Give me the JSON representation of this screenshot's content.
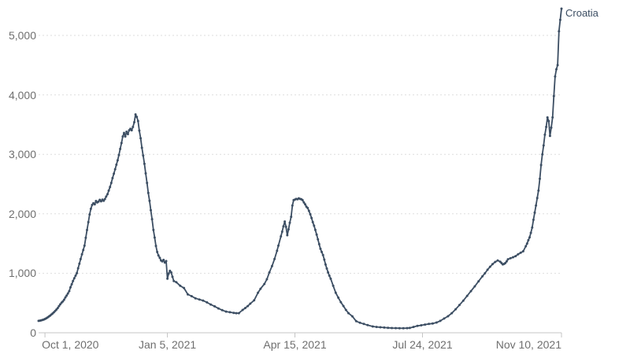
{
  "chart": {
    "entity_label": "Croatia",
    "line_color": "#3c4e63",
    "axis_label_color": "#6f6f6f",
    "grid_color": "#dedede",
    "axis_line_color": "#c4c4c4",
    "background": "#ffffff"
  },
  "chart_data": {
    "type": "line",
    "title": "",
    "xlabel": "",
    "ylabel": "",
    "grid": "horizontal-dashed",
    "legend_position": "line-end",
    "x_domain_days": [
      -5,
      405
    ],
    "x_epoch": "days relative to Oct 1, 2020",
    "ylim": [
      0,
      5500
    ],
    "y_ticks": [
      {
        "value": 0,
        "label": "0"
      },
      {
        "value": 1000,
        "label": "1,000"
      },
      {
        "value": 2000,
        "label": "2,000"
      },
      {
        "value": 3000,
        "label": "3,000"
      },
      {
        "value": 4000,
        "label": "4,000"
      },
      {
        "value": 5000,
        "label": "5,000"
      }
    ],
    "x_ticks": [
      {
        "day": 0,
        "label": "Oct 1, 2020"
      },
      {
        "day": 96,
        "label": "Jan 5, 2021"
      },
      {
        "day": 196,
        "label": "Apr 15, 2021"
      },
      {
        "day": 296,
        "label": "Jul 24, 2021"
      },
      {
        "day": 405,
        "label": "Nov 10, 2021"
      }
    ],
    "series": [
      {
        "name": "Croatia",
        "points": [
          [
            -5,
            200
          ],
          [
            -4,
            204
          ],
          [
            -3,
            209
          ],
          [
            -2,
            215
          ],
          [
            -1,
            222
          ],
          [
            0,
            231
          ],
          [
            1,
            243
          ],
          [
            2,
            257
          ],
          [
            3,
            272
          ],
          [
            4,
            288
          ],
          [
            5,
            305
          ],
          [
            6,
            324
          ],
          [
            7,
            344
          ],
          [
            8,
            366
          ],
          [
            9,
            390
          ],
          [
            10,
            416
          ],
          [
            11,
            449
          ],
          [
            12,
            478
          ],
          [
            13,
            505
          ],
          [
            14,
            528
          ],
          [
            15,
            556
          ],
          [
            16,
            594
          ],
          [
            17,
            625
          ],
          [
            18,
            660
          ],
          [
            19,
            700
          ],
          [
            20,
            765
          ],
          [
            21,
            815
          ],
          [
            22,
            871
          ],
          [
            23,
            915
          ],
          [
            24,
            960
          ],
          [
            25,
            1003
          ],
          [
            26,
            1085
          ],
          [
            27,
            1161
          ],
          [
            28,
            1240
          ],
          [
            29,
            1319
          ],
          [
            30,
            1390
          ],
          [
            31,
            1464
          ],
          [
            32,
            1596
          ],
          [
            33,
            1728
          ],
          [
            34,
            1860
          ],
          [
            35,
            1990
          ],
          [
            36,
            2084
          ],
          [
            37,
            2150
          ],
          [
            38,
            2177
          ],
          [
            39,
            2160
          ],
          [
            40,
            2216
          ],
          [
            41,
            2190
          ],
          [
            42,
            2205
          ],
          [
            43,
            2235
          ],
          [
            44,
            2210
          ],
          [
            45,
            2240
          ],
          [
            46,
            2218
          ],
          [
            47,
            2248
          ],
          [
            48,
            2290
          ],
          [
            49,
            2330
          ],
          [
            50,
            2390
          ],
          [
            51,
            2450
          ],
          [
            52,
            2520
          ],
          [
            53,
            2600
          ],
          [
            54,
            2675
          ],
          [
            55,
            2750
          ],
          [
            56,
            2825
          ],
          [
            57,
            2900
          ],
          [
            58,
            2990
          ],
          [
            59,
            3090
          ],
          [
            60,
            3190
          ],
          [
            61,
            3300
          ],
          [
            62,
            3360
          ],
          [
            63,
            3300
          ],
          [
            64,
            3380
          ],
          [
            65,
            3340
          ],
          [
            66,
            3405
          ],
          [
            67,
            3430
          ],
          [
            68,
            3405
          ],
          [
            69,
            3460
          ],
          [
            70,
            3540
          ],
          [
            71,
            3670
          ],
          [
            72,
            3630
          ],
          [
            73,
            3560
          ],
          [
            74,
            3400
          ],
          [
            75,
            3270
          ],
          [
            76,
            3110
          ],
          [
            77,
            2980
          ],
          [
            78,
            2840
          ],
          [
            79,
            2680
          ],
          [
            80,
            2520
          ],
          [
            81,
            2350
          ],
          [
            82,
            2220
          ],
          [
            83,
            2060
          ],
          [
            84,
            1910
          ],
          [
            85,
            1730
          ],
          [
            86,
            1600
          ],
          [
            87,
            1460
          ],
          [
            88,
            1360
          ],
          [
            89,
            1300
          ],
          [
            90,
            1260
          ],
          [
            91,
            1215
          ],
          [
            92,
            1200
          ],
          [
            93,
            1225
          ],
          [
            94,
            1180
          ],
          [
            95,
            1205
          ],
          [
            96,
            910
          ],
          [
            97,
            995
          ],
          [
            98,
            1042
          ],
          [
            99,
            1016
          ],
          [
            100,
            940
          ],
          [
            101,
            871
          ],
          [
            103,
            850
          ],
          [
            106,
            790
          ],
          [
            109,
            752
          ],
          [
            112,
            646
          ],
          [
            115,
            615
          ],
          [
            118,
            580
          ],
          [
            121,
            560
          ],
          [
            124,
            541
          ],
          [
            127,
            510
          ],
          [
            130,
            475
          ],
          [
            133,
            445
          ],
          [
            136,
            409
          ],
          [
            139,
            380
          ],
          [
            142,
            356
          ],
          [
            145,
            345
          ],
          [
            148,
            335
          ],
          [
            150,
            330
          ],
          [
            152,
            330
          ],
          [
            155,
            383
          ],
          [
            157,
            415
          ],
          [
            159,
            449
          ],
          [
            161,
            490
          ],
          [
            164,
            545
          ],
          [
            167,
            673
          ],
          [
            169,
            740
          ],
          [
            172,
            820
          ],
          [
            174,
            900
          ],
          [
            176,
            1016
          ],
          [
            178,
            1120
          ],
          [
            180,
            1240
          ],
          [
            182,
            1380
          ],
          [
            183,
            1464
          ],
          [
            185,
            1620
          ],
          [
            186,
            1700
          ],
          [
            187,
            1790
          ],
          [
            188,
            1870
          ],
          [
            189,
            1780
          ],
          [
            190,
            1640
          ],
          [
            191,
            1740
          ],
          [
            192,
            1850
          ],
          [
            193,
            1950
          ],
          [
            194,
            2140
          ],
          [
            195,
            2230
          ],
          [
            196,
            2240
          ],
          [
            197,
            2250
          ],
          [
            198,
            2245
          ],
          [
            199,
            2260
          ],
          [
            200,
            2250
          ],
          [
            201,
            2245
          ],
          [
            202,
            2230
          ],
          [
            203,
            2190
          ],
          [
            204,
            2160
          ],
          [
            205,
            2120
          ],
          [
            206,
            2098
          ],
          [
            207,
            2050
          ],
          [
            208,
            1992
          ],
          [
            209,
            1930
          ],
          [
            210,
            1860
          ],
          [
            211,
            1800
          ],
          [
            212,
            1730
          ],
          [
            213,
            1650
          ],
          [
            214,
            1570
          ],
          [
            215,
            1490
          ],
          [
            216,
            1412
          ],
          [
            217,
            1360
          ],
          [
            218,
            1306
          ],
          [
            219,
            1230
          ],
          [
            220,
            1148
          ],
          [
            221,
            1080
          ],
          [
            222,
            1016
          ],
          [
            223,
            960
          ],
          [
            224,
            910
          ],
          [
            226,
            790
          ],
          [
            228,
            673
          ],
          [
            230,
            590
          ],
          [
            232,
            514
          ],
          [
            234,
            450
          ],
          [
            236,
            383
          ],
          [
            238,
            330
          ],
          [
            241,
            277
          ],
          [
            244,
            195
          ],
          [
            247,
            168
          ],
          [
            250,
            148
          ],
          [
            253,
            128
          ],
          [
            257,
            106
          ],
          [
            260,
            98
          ],
          [
            263,
            92
          ],
          [
            266,
            87
          ],
          [
            269,
            83
          ],
          [
            272,
            80
          ],
          [
            275,
            78
          ],
          [
            278,
            77
          ],
          [
            281,
            76
          ],
          [
            284,
            78
          ],
          [
            286,
            81
          ],
          [
            289,
            98
          ],
          [
            292,
            115
          ],
          [
            295,
            126
          ],
          [
            298,
            138
          ],
          [
            301,
            148
          ],
          [
            304,
            156
          ],
          [
            307,
            172
          ],
          [
            310,
            200
          ],
          [
            313,
            240
          ],
          [
            316,
            278
          ],
          [
            319,
            330
          ],
          [
            322,
            395
          ],
          [
            325,
            465
          ],
          [
            328,
            540
          ],
          [
            331,
            620
          ],
          [
            334,
            700
          ],
          [
            337,
            780
          ],
          [
            340,
            865
          ],
          [
            343,
            950
          ],
          [
            345,
            1000
          ],
          [
            347,
            1060
          ],
          [
            349,
            1110
          ],
          [
            351,
            1155
          ],
          [
            353,
            1190
          ],
          [
            355,
            1215
          ],
          [
            357,
            1195
          ],
          [
            358,
            1170
          ],
          [
            359,
            1150
          ],
          [
            360,
            1158
          ],
          [
            361,
            1172
          ],
          [
            362,
            1200
          ],
          [
            363,
            1235
          ],
          [
            365,
            1252
          ],
          [
            367,
            1270
          ],
          [
            369,
            1288
          ],
          [
            371,
            1320
          ],
          [
            373,
            1345
          ],
          [
            375,
            1370
          ],
          [
            377,
            1455
          ],
          [
            378,
            1500
          ],
          [
            379,
            1555
          ],
          [
            380,
            1605
          ],
          [
            381,
            1680
          ],
          [
            382,
            1770
          ],
          [
            383,
            1900
          ],
          [
            384,
            2020
          ],
          [
            385,
            2140
          ],
          [
            386,
            2265
          ],
          [
            387,
            2390
          ],
          [
            388,
            2590
          ],
          [
            389,
            2820
          ],
          [
            390,
            3000
          ],
          [
            391,
            3150
          ],
          [
            392,
            3330
          ],
          [
            393,
            3460
          ],
          [
            394,
            3620
          ],
          [
            395,
            3560
          ],
          [
            396,
            3310
          ],
          [
            397,
            3450
          ],
          [
            398,
            3620
          ],
          [
            399,
            3980
          ],
          [
            400,
            4310
          ],
          [
            401,
            4430
          ],
          [
            402,
            4500
          ],
          [
            403,
            5070
          ],
          [
            404,
            5260
          ],
          [
            405,
            5450
          ]
        ]
      }
    ]
  }
}
